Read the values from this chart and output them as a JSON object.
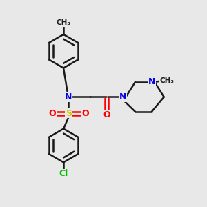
{
  "background_color": "#e8e8e8",
  "bond_color": "#1a1a1a",
  "atom_colors": {
    "N": "#0000ee",
    "O": "#ff0000",
    "S": "#cccc00",
    "Cl": "#00bb00",
    "C": "#1a1a1a"
  },
  "line_width": 1.8,
  "figsize": [
    3.0,
    3.0
  ],
  "dpi": 100
}
